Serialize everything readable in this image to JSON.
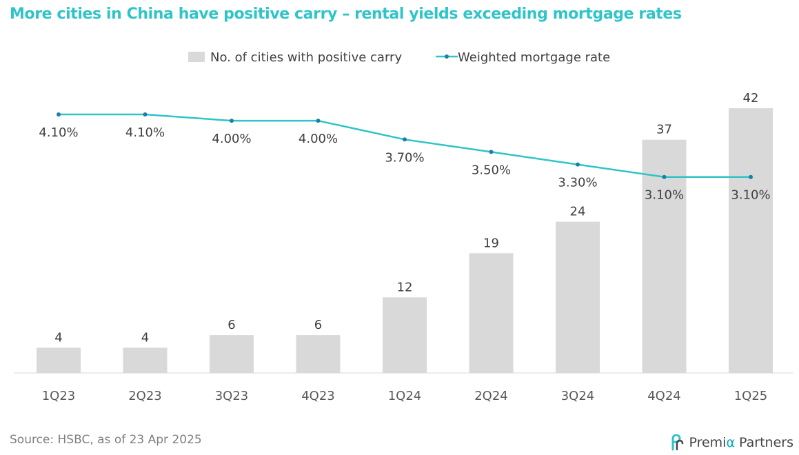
{
  "title": "More cities in China have positive carry – rental yields exceeding mortgage rates",
  "source": "Source: HSBC, as of 23 Apr 2025",
  "brand": {
    "name_part1": "Premi",
    "name_alpha": "α",
    "name_part2": " Partners",
    "logo_icon": "premia-logo-icon"
  },
  "colors": {
    "title": "#2ec4c8",
    "bar": "#d9d9d9",
    "line": "#2ec4c8",
    "marker": "#1f7ea7",
    "label": "#404040",
    "axis": "#d9d9d9",
    "tick": "#595959",
    "brand_accent": "#00a9b5"
  },
  "chart_data": {
    "type": "bar",
    "categories": [
      "1Q23",
      "2Q23",
      "3Q23",
      "4Q23",
      "1Q24",
      "2Q24",
      "3Q24",
      "4Q24",
      "1Q25"
    ],
    "series": [
      {
        "name": "No. of cities with positive carry",
        "type": "bar",
        "values": [
          4,
          4,
          6,
          6,
          12,
          19,
          24,
          37,
          42
        ],
        "labels": [
          "4",
          "4",
          "6",
          "6",
          "12",
          "19",
          "24",
          "37",
          "42"
        ]
      },
      {
        "name": "Weighted mortgage rate",
        "type": "line",
        "values": [
          4.1,
          4.1,
          4.0,
          4.0,
          3.7,
          3.5,
          3.3,
          3.1,
          3.1
        ],
        "labels": [
          "4.10%",
          "4.10%",
          "4.00%",
          "4.00%",
          "3.70%",
          "3.50%",
          "3.30%",
          "3.10%",
          "3.10%"
        ]
      }
    ],
    "bar_axis_range": [
      0,
      42
    ],
    "line_axis_range": [
      1.0,
      4.1
    ],
    "grid": false,
    "legend_position": "top-center"
  }
}
